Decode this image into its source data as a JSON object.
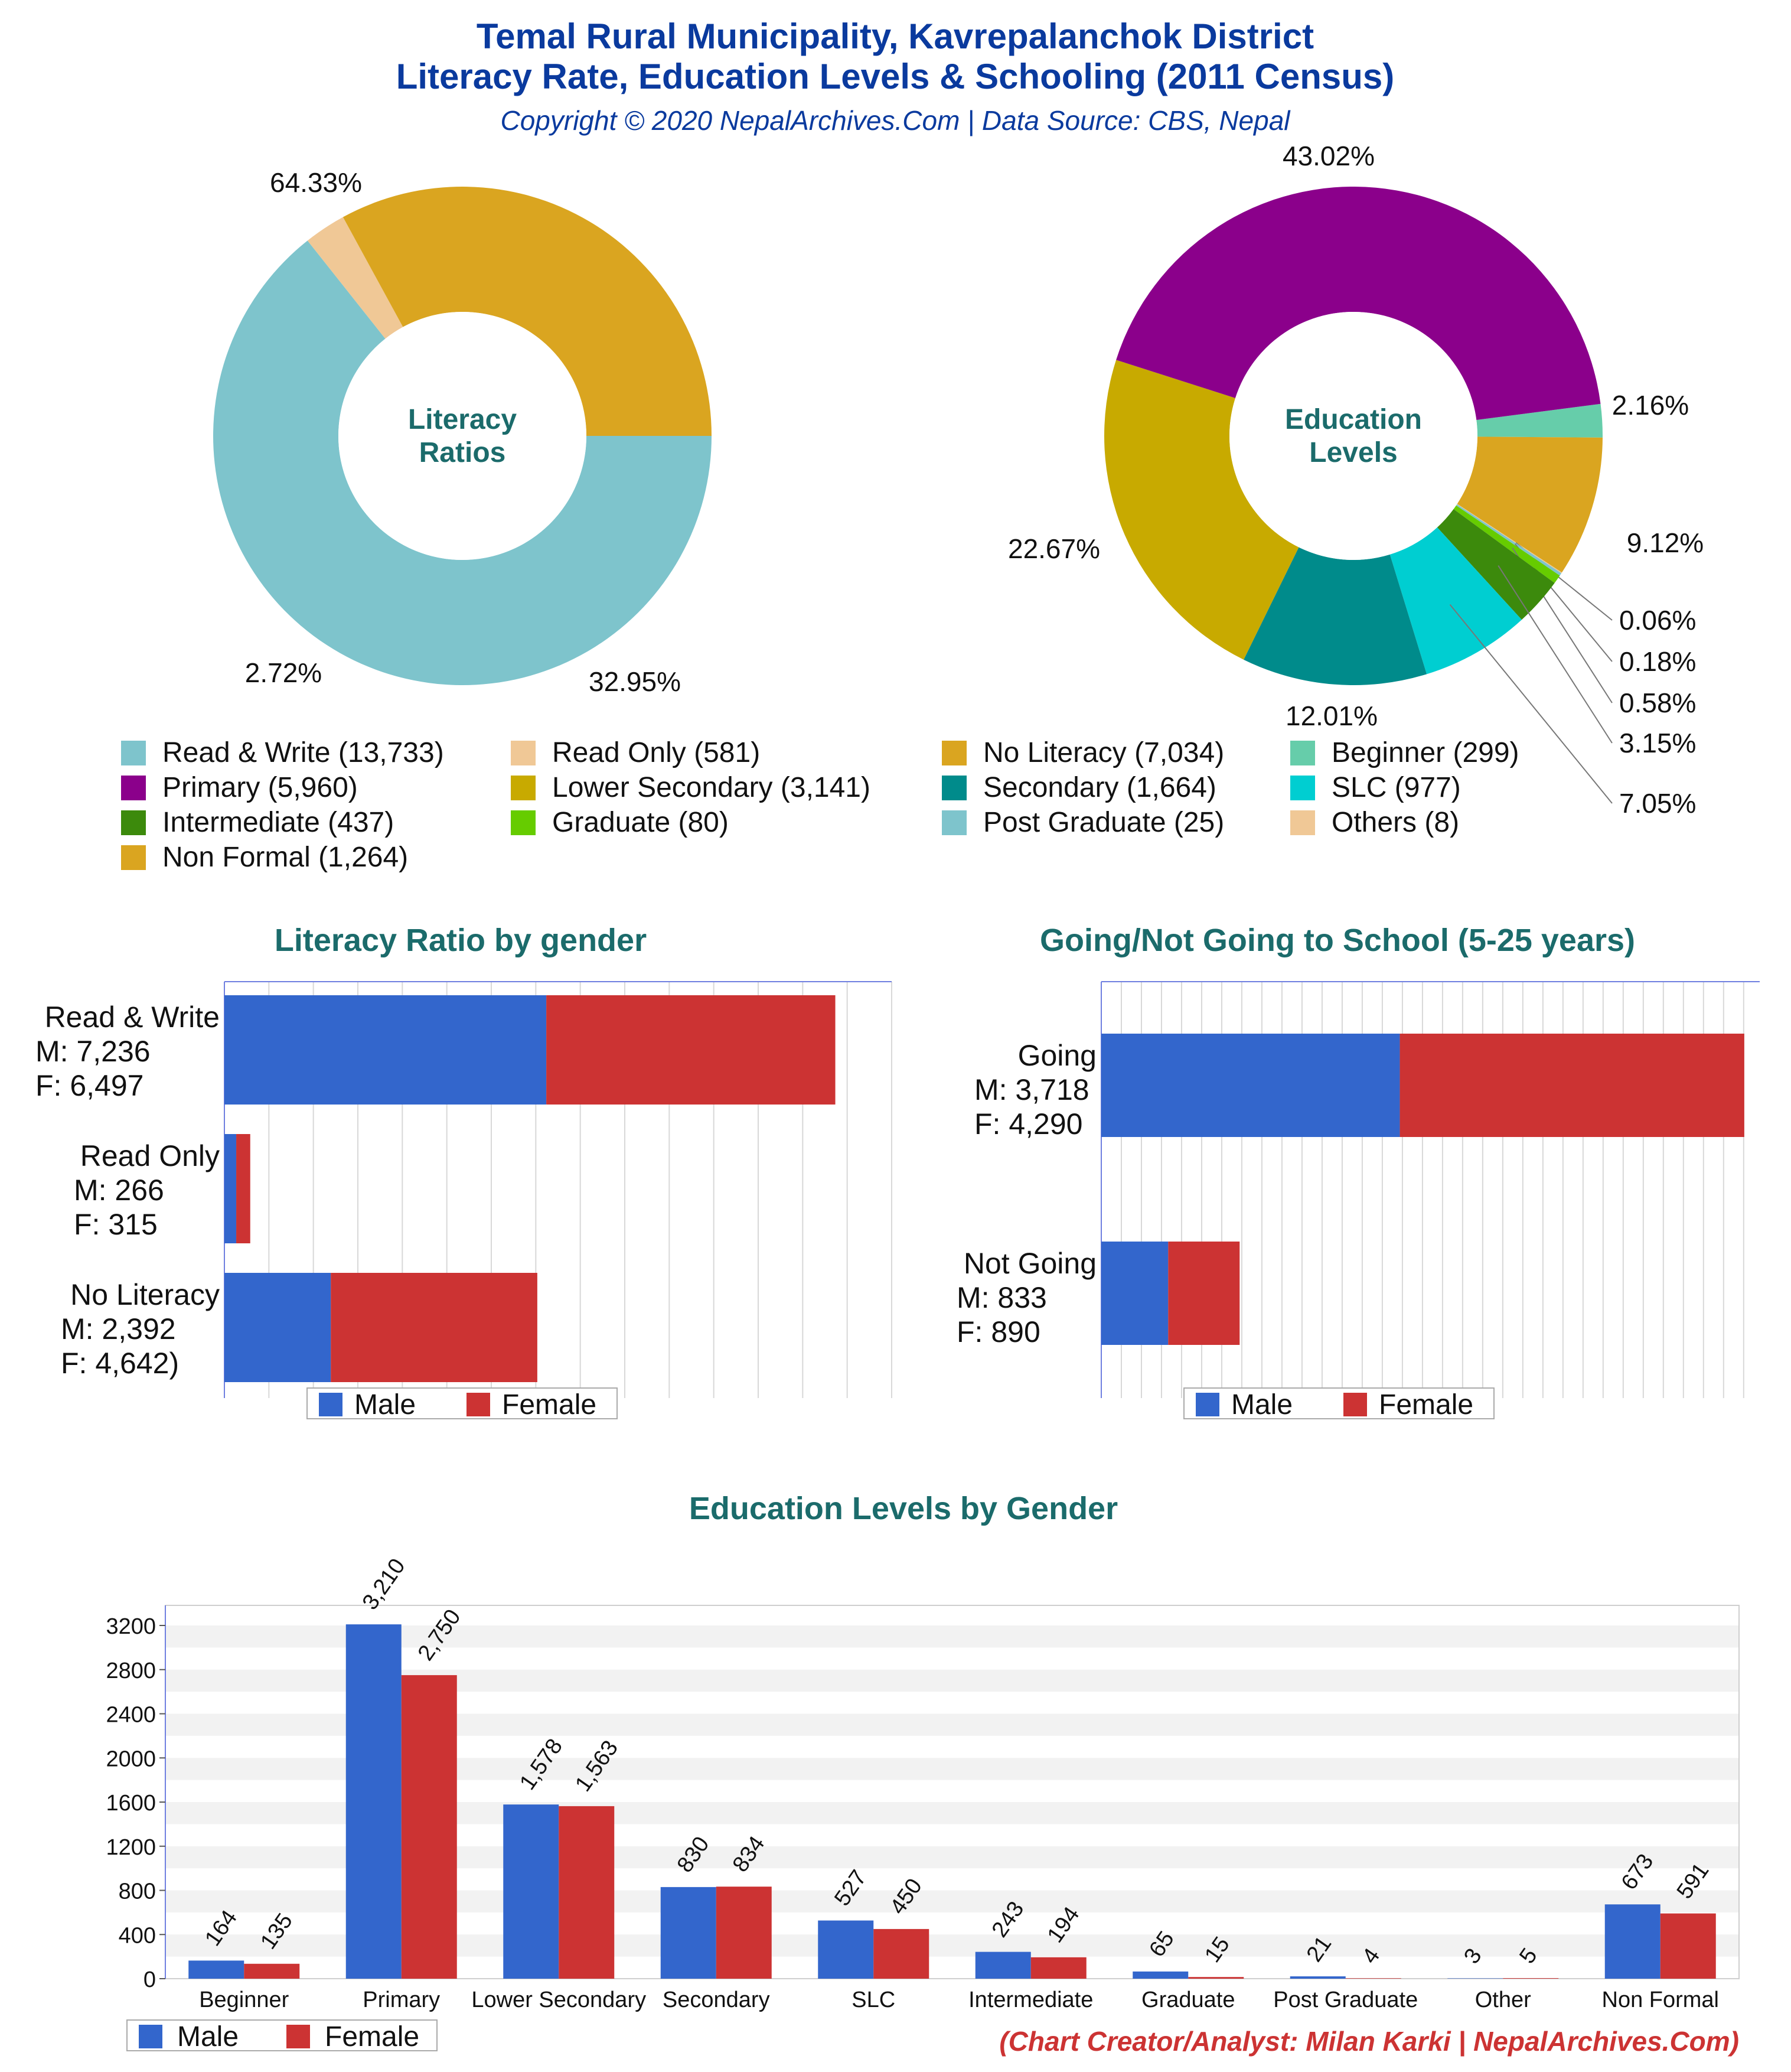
{
  "header": {
    "title_line1": "Temal Rural Municipality, Kavrepalanchok District",
    "title_line2": "Literacy Rate, Education Levels & Schooling (2011 Census)",
    "subtitle": "Copyright © 2020 NepalArchives.Com | Data Source: CBS, Nepal"
  },
  "footer": {
    "credit": "(Chart Creator/Analyst: Milan Karki | NepalArchives.Com)"
  },
  "colors": {
    "title_blue": "#0a3a9e",
    "teal_title": "#1b6b6b",
    "male": "#3366cc",
    "female": "#cc3333",
    "credit_red": "#cc3333"
  },
  "chart_data": [
    {
      "id": "literacy-donut",
      "type": "pie",
      "title": "",
      "center_label": [
        "Literacy",
        "Ratios"
      ],
      "slices": [
        {
          "label": "Read & Write",
          "value": 13733,
          "pct": "64.33%",
          "color": "#7ec4cc"
        },
        {
          "label": "Read Only",
          "value": 581,
          "pct": "2.72%",
          "color": "#f0c896"
        },
        {
          "label": "No Literacy",
          "value": 7034,
          "pct": "32.95%",
          "color": "#daa520"
        }
      ]
    },
    {
      "id": "education-donut",
      "type": "pie",
      "title": "",
      "center_label": [
        "Education",
        "Levels"
      ],
      "slices": [
        {
          "label": "Beginner",
          "value": 299,
          "pct": "2.16%",
          "color": "#66cdaa"
        },
        {
          "label": "Primary",
          "value": 5960,
          "pct": "43.02%",
          "color": "#8b008b"
        },
        {
          "label": "Intermediate",
          "value": 437,
          "pct": "3.15%",
          "color": "#3c8a0c"
        },
        {
          "label": "Non Formal",
          "value": 1264,
          "pct": "9.12%",
          "color": "#daa520"
        },
        {
          "label": "Lower Secondary",
          "value": 3141,
          "pct": "22.67%",
          "color": "#c8aa00"
        },
        {
          "label": "Graduate",
          "value": 80,
          "pct": "0.58%",
          "color": "#66cc00"
        },
        {
          "label": "Secondary",
          "value": 1664,
          "pct": "12.01%",
          "color": "#008b8b"
        },
        {
          "label": "Post Graduate",
          "value": 25,
          "pct": "0.18%",
          "color": "#7ec4cc"
        },
        {
          "label": "SLC",
          "value": 977,
          "pct": "7.05%",
          "color": "#00ced1"
        },
        {
          "label": "Others",
          "value": 8,
          "pct": "0.06%",
          "color": "#f0c896"
        }
      ]
    },
    {
      "id": "literacy-by-gender",
      "type": "bar",
      "orientation": "horizontal",
      "stacked": true,
      "title": "Literacy Ratio by gender",
      "categories": [
        "Read & Write",
        "Read Only",
        "No Literacy"
      ],
      "category_labels": [
        [
          "Read & Write",
          "M: 7,236",
          "F: 6,497"
        ],
        [
          "Read Only",
          "M: 266",
          "F: 315"
        ],
        [
          "No Literacy",
          "M: 2,392",
          "F: 4,642)"
        ]
      ],
      "series": [
        {
          "name": "Male",
          "values": [
            7236,
            266,
            2392
          ]
        },
        {
          "name": "Female",
          "values": [
            6497,
            315,
            4642
          ]
        }
      ],
      "xlim": [
        0,
        15000
      ],
      "legend_position": "bottom"
    },
    {
      "id": "schooling",
      "type": "bar",
      "orientation": "horizontal",
      "stacked": true,
      "title": "Going/Not Going to School (5-25 years)",
      "categories": [
        "Going",
        "Not Going"
      ],
      "category_labels": [
        [
          "Going",
          "M: 3,718",
          "F: 4,290"
        ],
        [
          "Not Going",
          "M: 833",
          "F: 890"
        ]
      ],
      "series": [
        {
          "name": "Male",
          "values": [
            3718,
            833
          ]
        },
        {
          "name": "Female",
          "values": [
            4290,
            890
          ]
        }
      ],
      "xlim": [
        0,
        8200
      ],
      "legend_position": "bottom"
    },
    {
      "id": "education-by-gender",
      "type": "bar",
      "title": "Education Levels by Gender",
      "categories": [
        "Beginner",
        "Primary",
        "Lower Secondary",
        "Secondary",
        "SLC",
        "Intermediate",
        "Graduate",
        "Post Graduate",
        "Other",
        "Non Formal"
      ],
      "series": [
        {
          "name": "Male",
          "values": [
            164,
            3210,
            1578,
            830,
            527,
            243,
            65,
            21,
            3,
            673
          ],
          "labels": [
            "164",
            "3,210",
            "1,578",
            "830",
            "527",
            "243",
            "65",
            "21",
            "3",
            "673"
          ]
        },
        {
          "name": "Female",
          "values": [
            135,
            2750,
            1563,
            834,
            450,
            194,
            15,
            4,
            5,
            591
          ],
          "labels": [
            "135",
            "2,750",
            "1,563",
            "834",
            "450",
            "194",
            "15",
            "4",
            "5",
            "591"
          ]
        }
      ],
      "ylim": [
        0,
        3200
      ],
      "yticks": [
        "0",
        "400",
        "800",
        "1200",
        "1600",
        "2000",
        "2400",
        "2800",
        "3200"
      ],
      "grid": true,
      "legend_position": "bottom-left"
    }
  ],
  "legend_entries": [
    "Read & Write (13,733)",
    "Read Only (581)",
    "No Literacy (7,034)",
    "Beginner (299)",
    "Primary (5,960)",
    "Lower Secondary (3,141)",
    "Secondary (1,664)",
    "SLC (977)",
    "Intermediate (437)",
    "Graduate (80)",
    "Post Graduate (25)",
    "Others (8)",
    "Non Formal (1,264)"
  ],
  "legend_colors": [
    "#7ec4cc",
    "#f0c896",
    "#daa520",
    "#66cdaa",
    "#8b008b",
    "#c8aa00",
    "#008b8b",
    "#00ced1",
    "#3c8a0c",
    "#66cc00",
    "#7ec4cc",
    "#f0c896",
    "#daa520"
  ]
}
